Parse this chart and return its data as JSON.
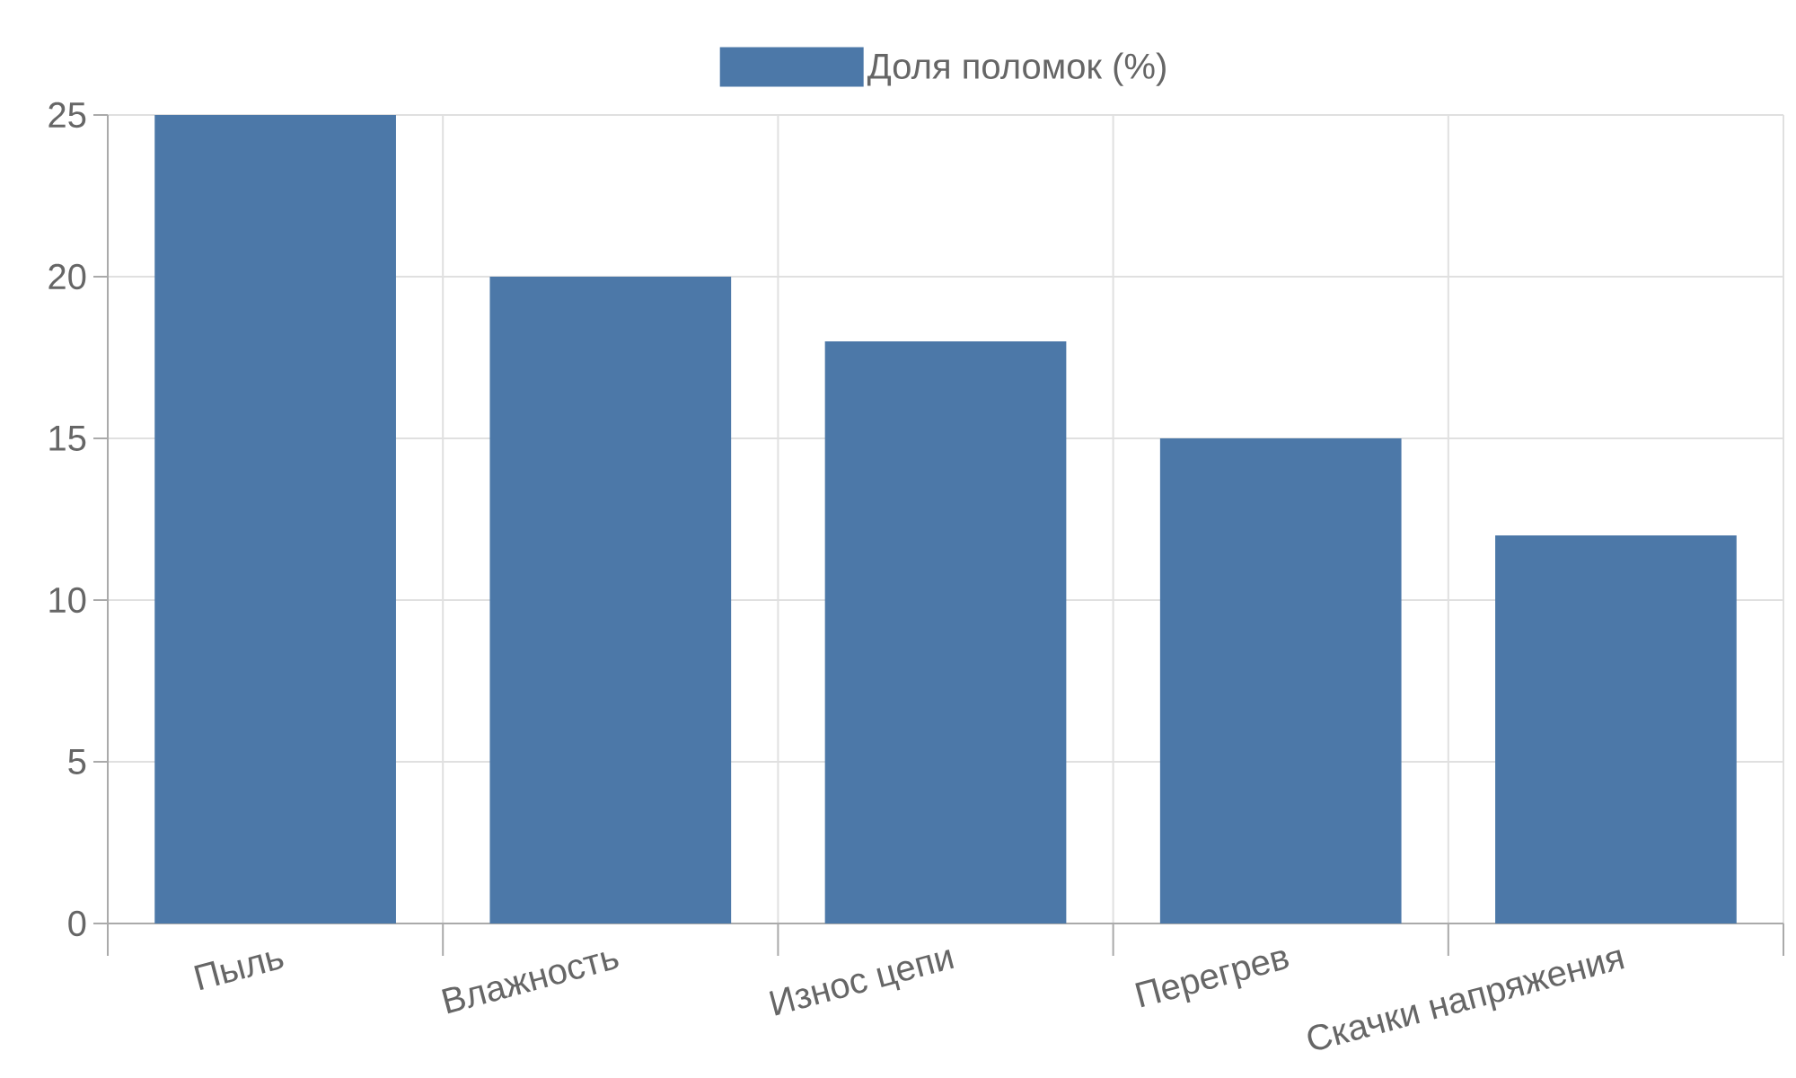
{
  "chart_data": {
    "type": "bar",
    "categories": [
      "Пыль",
      "Влажность",
      "Износ цепи",
      "Перегрев",
      "Скачки напряжения"
    ],
    "series": [
      {
        "name": "Доля поломок (%)",
        "color": "#4c78a8",
        "values": [
          25,
          20,
          18,
          15,
          12
        ]
      }
    ],
    "ylim": [
      0,
      25
    ],
    "yticks": [
      0,
      5,
      10,
      15,
      20,
      25
    ],
    "grid": true,
    "legend": "top"
  }
}
